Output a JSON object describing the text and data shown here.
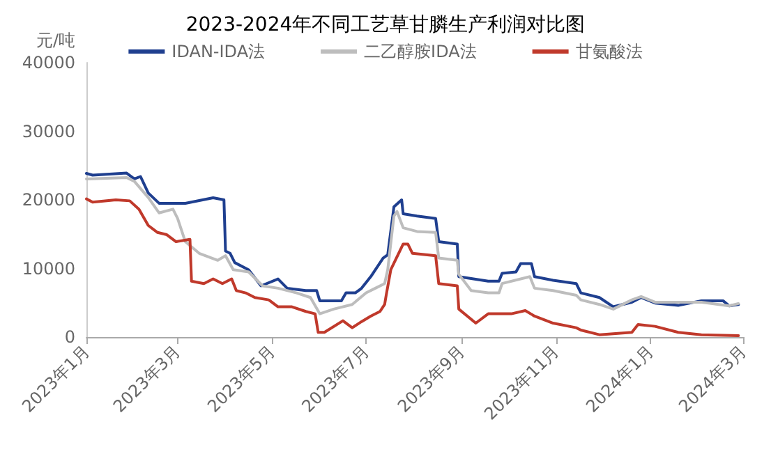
{
  "chart_data": {
    "type": "line",
    "title": "2023-2024年不同工艺草甘膦生产利润对比图",
    "ylabel": "元/吨",
    "xlim": [
      "2023-01-01",
      "2024-03-01"
    ],
    "xticks": [
      {
        "value": "2023-01-01",
        "label": "2023年1月"
      },
      {
        "value": "2023-03-01",
        "label": "2023年3月"
      },
      {
        "value": "2023-05-01",
        "label": "2023年5月"
      },
      {
        "value": "2023-07-01",
        "label": "2023年7月"
      },
      {
        "value": "2023-09-01",
        "label": "2023年9月"
      },
      {
        "value": "2023-11-01",
        "label": "2023年11月"
      },
      {
        "value": "2024-01-01",
        "label": "2024年1月"
      },
      {
        "value": "2024-03-01",
        "label": "2024年3月"
      }
    ],
    "ylim": [
      0,
      40000
    ],
    "yticks": [
      0,
      10000,
      20000,
      30000,
      40000
    ],
    "grid": false,
    "legend": "top",
    "marker": "none",
    "line_style": "solid",
    "series": [
      {
        "name": "IDAN-IDA法",
        "color": "#1f3f8f",
        "x": [
          "2023-01-01",
          "2023-01-05",
          "2023-01-27",
          "2023-02-01",
          "2023-02-05",
          "2023-02-10",
          "2023-02-17",
          "2023-03-06",
          "2023-03-24",
          "2023-03-31",
          "2023-04-01",
          "2023-04-04",
          "2023-04-07",
          "2023-04-16",
          "2023-04-24",
          "2023-05-05",
          "2023-05-11",
          "2023-05-23",
          "2023-05-30",
          "2023-06-01",
          "2023-06-15",
          "2023-06-18",
          "2023-06-24",
          "2023-06-28",
          "2023-07-04",
          "2023-07-07",
          "2023-07-12",
          "2023-07-15",
          "2023-07-19",
          "2023-07-24",
          "2023-07-25",
          "2023-08-03",
          "2023-08-15",
          "2023-08-17",
          "2023-08-29",
          "2023-08-30",
          "2023-09-18",
          "2023-09-25",
          "2023-09-27",
          "2023-10-06",
          "2023-10-09",
          "2023-10-16",
          "2023-10-18",
          "2023-10-30",
          "2023-11-14",
          "2023-11-17",
          "2023-11-29",
          "2023-12-08",
          "2023-12-20",
          "2023-12-26",
          "2024-01-04",
          "2024-01-19",
          "2024-02-03",
          "2024-02-17",
          "2024-02-21",
          "2024-02-27"
        ],
        "values": [
          23860,
          23600,
          23900,
          23050,
          23400,
          21000,
          19500,
          19500,
          20300,
          20000,
          12540,
          12200,
          10850,
          9800,
          7460,
          8470,
          7100,
          6780,
          6780,
          5290,
          5290,
          6440,
          6440,
          7100,
          8800,
          9800,
          11500,
          12000,
          18980,
          20000,
          17970,
          17630,
          17290,
          13900,
          13560,
          8810,
          8140,
          8140,
          9290,
          9490,
          10710,
          10710,
          8810,
          8270,
          7800,
          6440,
          5760,
          4410,
          5080,
          5760,
          4950,
          4610,
          5290,
          5290,
          4540,
          4750
        ]
      },
      {
        "name": "二乙醇胺IDA法",
        "color": "#bdbdbd",
        "x": [
          "2023-01-01",
          "2023-01-27",
          "2023-02-01",
          "2023-02-10",
          "2023-02-17",
          "2023-02-26",
          "2023-03-01",
          "2023-03-06",
          "2023-03-15",
          "2023-03-27",
          "2023-04-01",
          "2023-04-06",
          "2023-04-16",
          "2023-04-25",
          "2023-05-05",
          "2023-05-17",
          "2023-05-26",
          "2023-06-01",
          "2023-06-10",
          "2023-06-22",
          "2023-07-01",
          "2023-07-07",
          "2023-07-13",
          "2023-07-15",
          "2023-07-19",
          "2023-07-21",
          "2023-07-25",
          "2023-08-03",
          "2023-08-15",
          "2023-08-17",
          "2023-08-29",
          "2023-08-30",
          "2023-09-07",
          "2023-09-18",
          "2023-09-25",
          "2023-09-27",
          "2023-10-15",
          "2023-10-18",
          "2023-10-30",
          "2023-11-14",
          "2023-11-17",
          "2023-11-29",
          "2023-12-08",
          "2023-12-20",
          "2023-12-26",
          "2024-01-04",
          "2024-02-03",
          "2024-02-21",
          "2024-02-27"
        ],
        "values": [
          23050,
          23250,
          22700,
          20340,
          18100,
          18640,
          17290,
          13900,
          12200,
          11190,
          11860,
          9830,
          9490,
          7460,
          7120,
          6440,
          5760,
          3390,
          4070,
          4750,
          6440,
          7120,
          7800,
          9830,
          17630,
          18300,
          15930,
          15390,
          15250,
          11530,
          11190,
          9150,
          6780,
          6440,
          6440,
          7800,
          8810,
          7120,
          6780,
          6100,
          5420,
          4750,
          4070,
          5420,
          5900,
          5080,
          5080,
          4540,
          4880
        ]
      },
      {
        "name": "甘氨酸法",
        "color": "#c0392b",
        "x": [
          "2023-01-01",
          "2023-01-05",
          "2023-01-20",
          "2023-01-29",
          "2023-02-04",
          "2023-02-10",
          "2023-02-16",
          "2023-02-22",
          "2023-02-28",
          "2023-03-09",
          "2023-03-10",
          "2023-03-18",
          "2023-03-24",
          "2023-03-30",
          "2023-04-05",
          "2023-04-08",
          "2023-04-14",
          "2023-04-20",
          "2023-04-29",
          "2023-05-05",
          "2023-05-14",
          "2023-05-23",
          "2023-05-29",
          "2023-05-31",
          "2023-06-04",
          "2023-06-16",
          "2023-06-22",
          "2023-06-28",
          "2023-07-04",
          "2023-07-10",
          "2023-07-13",
          "2023-07-14",
          "2023-07-17",
          "2023-07-25",
          "2023-07-28",
          "2023-07-31",
          "2023-08-15",
          "2023-08-17",
          "2023-08-29",
          "2023-08-30",
          "2023-09-10",
          "2023-09-18",
          "2023-10-03",
          "2023-10-12",
          "2023-10-18",
          "2023-10-30",
          "2023-11-14",
          "2023-11-17",
          "2023-11-29",
          "2023-12-20",
          "2023-12-24",
          "2024-01-04",
          "2024-01-19",
          "2024-02-03",
          "2024-02-27"
        ],
        "values": [
          20140,
          19660,
          20000,
          19860,
          18640,
          16270,
          15250,
          14920,
          13900,
          14240,
          8140,
          7800,
          8470,
          7800,
          8470,
          6780,
          6440,
          5760,
          5420,
          4410,
          4410,
          3730,
          3390,
          680,
          680,
          2370,
          1360,
          2240,
          3050,
          3730,
          4750,
          6100,
          9830,
          13560,
          13560,
          12200,
          11860,
          7800,
          7460,
          4070,
          2030,
          3390,
          3390,
          3860,
          3050,
          2030,
          1360,
          1020,
          340,
          680,
          1830,
          1560,
          680,
          340,
          200
        ]
      }
    ]
  }
}
